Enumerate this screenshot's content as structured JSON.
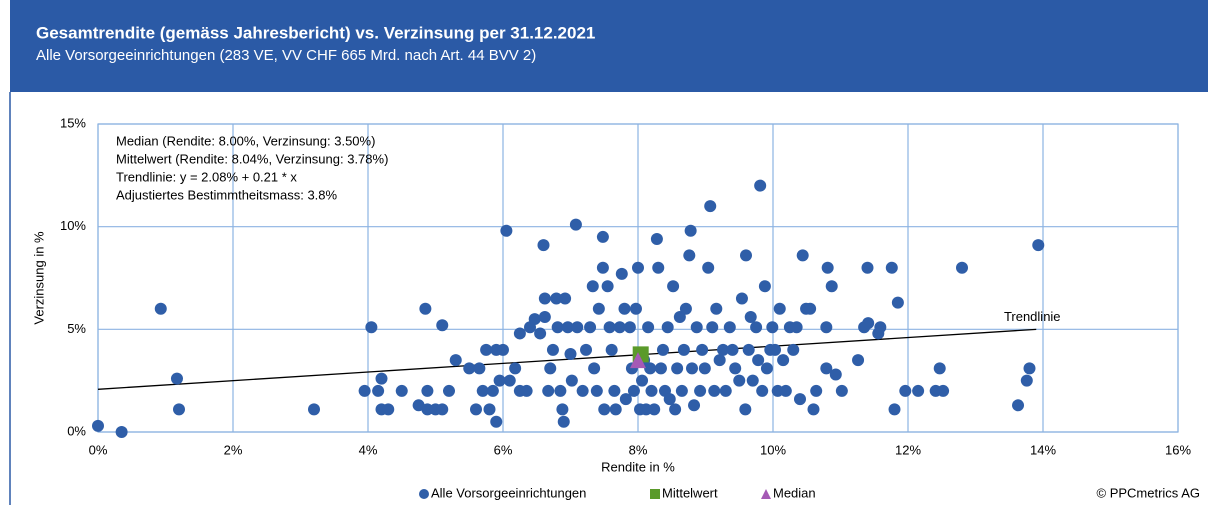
{
  "chart_data": {
    "type": "scatter",
    "title": "Gesamtrendite (gemäss Jahresbericht) vs. Verzinsung per 31.12.2021",
    "subtitle": "Alle Vorsorgeeinrichtungen (283 VE, VV CHF 665 Mrd. nach Art. 44 BVV 2)",
    "x_label": "Rendite in %",
    "y_label": "Verzinsung in %",
    "annotations": [
      "Median (Rendite: 8.00%, Verzinsung: 3.50%)",
      "Mittelwert (Rendite: 8.04%, Verzinsung: 3.78%)",
      "Trendlinie: y = 2.08% + 0.21 * x",
      "Adjustiertes Bestimmtheitsmass: 3.8%"
    ],
    "source": "© PPCmetrics AG",
    "xlim": [
      0,
      16
    ],
    "xticks": [
      {
        "value": 0,
        "label": "0%"
      },
      {
        "value": 2,
        "label": "2%"
      },
      {
        "value": 4,
        "label": "4%"
      },
      {
        "value": 6,
        "label": "6%"
      },
      {
        "value": 8,
        "label": "8%"
      },
      {
        "value": 10,
        "label": "10%"
      },
      {
        "value": 12,
        "label": "12%"
      },
      {
        "value": 14,
        "label": "14%"
      },
      {
        "value": 16,
        "label": "16%"
      }
    ],
    "ylim": [
      0,
      15
    ],
    "yticks": [
      {
        "value": 0,
        "label": "0%"
      },
      {
        "value": 5,
        "label": "5%"
      },
      {
        "value": 10,
        "label": "10%"
      },
      {
        "value": 15,
        "label": "15%"
      }
    ],
    "grid": true,
    "trendline": {
      "label": "Trendlinie",
      "intercept": 2.08,
      "slope": 0.21,
      "x_range": [
        0,
        13.9
      ]
    },
    "series": [
      {
        "name": "Alle Vorsorgeeinrichtungen",
        "color": "#2f5ea8",
        "marker": "circle",
        "x": [
          0.0,
          0.35,
          0.93,
          1.17,
          1.2,
          3.2,
          3.95,
          4.05,
          4.15,
          4.2,
          4.2,
          4.3,
          4.5,
          4.75,
          4.85,
          4.88,
          4.88,
          5.0,
          5.1,
          5.1,
          5.2,
          5.3,
          5.5,
          5.6,
          5.65,
          5.7,
          5.75,
          5.8,
          5.85,
          5.9,
          5.9,
          6.0,
          6.05,
          5.95,
          6.1,
          6.18,
          6.25,
          6.25,
          6.35,
          6.4,
          6.47,
          6.55,
          6.6,
          6.62,
          6.62,
          6.67,
          6.7,
          6.74,
          6.79,
          6.81,
          6.85,
          6.88,
          6.9,
          6.92,
          6.96,
          7.0,
          7.02,
          7.08,
          7.1,
          7.18,
          7.23,
          7.29,
          7.33,
          7.35,
          7.39,
          7.42,
          7.48,
          7.48,
          7.5,
          7.55,
          7.58,
          7.61,
          7.65,
          7.67,
          7.73,
          7.76,
          7.8,
          7.82,
          7.88,
          7.91,
          7.94,
          7.97,
          8.0,
          8.03,
          8.06,
          8.09,
          8.12,
          8.15,
          8.18,
          8.2,
          8.24,
          8.28,
          8.3,
          8.34,
          8.37,
          8.4,
          8.44,
          8.47,
          8.52,
          8.55,
          8.58,
          8.62,
          8.65,
          8.68,
          8.71,
          8.76,
          8.78,
          8.8,
          8.83,
          8.87,
          8.92,
          8.95,
          8.99,
          9.04,
          9.07,
          9.1,
          9.13,
          9.16,
          9.21,
          9.26,
          9.3,
          9.36,
          9.4,
          9.44,
          9.5,
          9.54,
          9.59,
          9.6,
          9.64,
          9.67,
          9.7,
          9.75,
          9.78,
          9.81,
          9.84,
          9.88,
          9.91,
          9.96,
          9.99,
          10.03,
          10.07,
          10.1,
          10.15,
          10.19,
          10.25,
          10.3,
          10.35,
          10.4,
          10.44,
          10.49,
          10.55,
          10.6,
          10.64,
          10.79,
          10.81,
          10.79,
          10.87,
          10.93,
          11.02,
          11.26,
          11.35,
          11.4,
          11.41,
          11.56,
          11.59,
          11.76,
          11.8,
          11.85,
          11.96,
          12.15,
          12.41,
          12.47,
          12.52,
          12.8,
          13.63,
          13.76,
          13.8,
          13.93
        ],
        "values": [
          0.3,
          0.0,
          6.0,
          2.6,
          1.1,
          1.1,
          2.0,
          5.1,
          2.0,
          2.6,
          1.1,
          1.1,
          2.0,
          1.3,
          6.0,
          2.0,
          1.1,
          1.1,
          1.1,
          5.2,
          2.0,
          3.5,
          3.1,
          1.1,
          3.1,
          2.0,
          4.0,
          1.1,
          2.0,
          0.5,
          4.0,
          4.0,
          9.8,
          2.5,
          2.5,
          3.1,
          2.0,
          4.8,
          2.0,
          5.1,
          5.5,
          4.8,
          9.1,
          6.5,
          5.6,
          2.0,
          3.1,
          4.0,
          6.5,
          5.1,
          2.0,
          1.1,
          0.5,
          6.5,
          5.1,
          3.8,
          2.5,
          10.1,
          5.1,
          2.0,
          4.0,
          5.1,
          7.1,
          3.1,
          2.0,
          6.0,
          9.5,
          8.0,
          1.1,
          7.1,
          5.1,
          4.0,
          2.0,
          1.1,
          5.1,
          7.7,
          6.0,
          1.6,
          5.1,
          3.1,
          2.0,
          6.0,
          8.0,
          1.1,
          2.5,
          3.5,
          1.1,
          5.1,
          3.1,
          2.0,
          1.1,
          9.4,
          8.0,
          3.1,
          4.0,
          2.0,
          5.1,
          1.6,
          7.1,
          1.1,
          3.1,
          5.6,
          2.0,
          4.0,
          6.0,
          8.6,
          9.8,
          3.1,
          1.3,
          5.1,
          2.0,
          4.0,
          3.1,
          8.0,
          11.0,
          5.1,
          2.0,
          6.0,
          3.5,
          4.0,
          2.0,
          5.1,
          4.0,
          3.1,
          2.5,
          6.5,
          1.1,
          8.6,
          4.0,
          5.6,
          2.5,
          5.1,
          3.5,
          12.0,
          2.0,
          7.1,
          3.1,
          4.0,
          5.1,
          4.0,
          2.0,
          6.0,
          3.5,
          2.0,
          5.1,
          4.0,
          5.1,
          1.6,
          8.6,
          6.0,
          6.0,
          1.1,
          2.0,
          3.1,
          8.0,
          5.1,
          7.1,
          2.8,
          2.0,
          3.5,
          5.1,
          8.0,
          5.3,
          4.8,
          5.1,
          8.0,
          1.1,
          6.3,
          2.0,
          2.0,
          2.0,
          3.1,
          2.0,
          8.0,
          1.3,
          2.5,
          3.1,
          9.1
        ]
      },
      {
        "name": "Mittelwert",
        "color": "#5a9a2a",
        "marker": "square",
        "x": [
          8.04
        ],
        "values": [
          3.78
        ]
      },
      {
        "name": "Median",
        "color": "#a55ab5",
        "marker": "triangle",
        "x": [
          8.0
        ],
        "values": [
          3.5
        ]
      }
    ]
  }
}
